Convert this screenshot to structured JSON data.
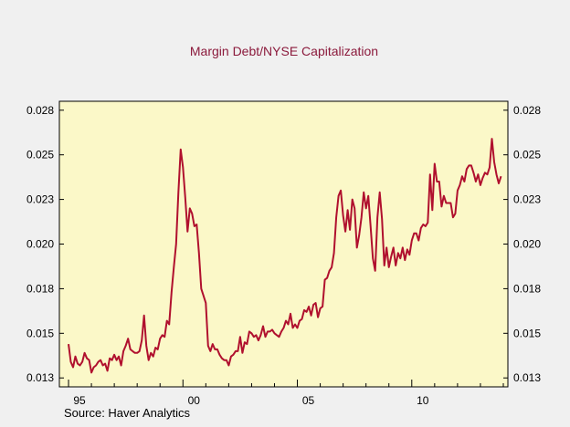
{
  "chart_data": {
    "type": "line",
    "title": "Margin Debt/NYSE Capitalization",
    "source": "Source: Haver Analytics",
    "xlabel": "",
    "ylabel": "",
    "xlim": [
      1994.6,
      2014.2
    ],
    "ylim": [
      0.0125,
      0.0285
    ],
    "y_ticks": [
      {
        "value": 0.013,
        "label": "0.013"
      },
      {
        "value": 0.0155,
        "label": "0.015"
      },
      {
        "value": 0.018,
        "label": "0.018"
      },
      {
        "value": 0.0205,
        "label": "0.020"
      },
      {
        "value": 0.023,
        "label": "0.023"
      },
      {
        "value": 0.0255,
        "label": "0.025"
      },
      {
        "value": 0.028,
        "label": "0.028"
      }
    ],
    "x_ticks": [
      {
        "value": 1995,
        "label": "95"
      },
      {
        "value": 2000,
        "label": "00"
      },
      {
        "value": 2005,
        "label": "05"
      },
      {
        "value": 2010,
        "label": "10"
      }
    ],
    "x_minor_ticks": [
      1996,
      1997,
      1998,
      1999,
      2001,
      2002,
      2003,
      2004,
      2006,
      2007,
      2008,
      2009,
      2011,
      2012,
      2013,
      2014
    ],
    "grid": false,
    "colors": {
      "line": "#b0102e",
      "plot_background": "#fbf8c8",
      "title": "#8b1a3c",
      "page_background": "#f0f0f0"
    },
    "series": [
      {
        "x": [
          1995.0,
          1995.1,
          1995.2,
          1995.3,
          1995.4,
          1995.5,
          1995.6,
          1995.7,
          1995.8,
          1995.9,
          1996.0,
          1996.1,
          1996.2,
          1996.3,
          1996.4,
          1996.5,
          1996.6,
          1996.7,
          1996.8,
          1996.9,
          1997.0,
          1997.1,
          1997.2,
          1997.3,
          1997.4,
          1997.5,
          1997.6,
          1997.7,
          1997.8,
          1997.9,
          1998.0,
          1998.1,
          1998.2,
          1998.3,
          1998.4,
          1998.5,
          1998.6,
          1998.7,
          1998.8,
          1998.9,
          1999.0,
          1999.1,
          1999.2,
          1999.3,
          1999.4,
          1999.5,
          1999.6,
          1999.7,
          1999.8,
          1999.9,
          2000.0,
          2000.1,
          2000.2,
          2000.3,
          2000.4,
          2000.5,
          2000.6,
          2000.7,
          2000.8,
          2000.9,
          2001.0,
          2001.1,
          2001.2,
          2001.3,
          2001.4,
          2001.5,
          2001.6,
          2001.7,
          2001.8,
          2001.9,
          2002.0,
          2002.1,
          2002.2,
          2002.3,
          2002.4,
          2002.5,
          2002.6,
          2002.7,
          2002.8,
          2002.9,
          2003.0,
          2003.1,
          2003.2,
          2003.3,
          2003.4,
          2003.5,
          2003.6,
          2003.7,
          2003.8,
          2003.9,
          2004.0,
          2004.1,
          2004.2,
          2004.3,
          2004.4,
          2004.5,
          2004.6,
          2004.7,
          2004.8,
          2004.9,
          2005.0,
          2005.1,
          2005.2,
          2005.3,
          2005.4,
          2005.5,
          2005.6,
          2005.7,
          2005.8,
          2005.9,
          2006.0,
          2006.1,
          2006.2,
          2006.3,
          2006.4,
          2006.5,
          2006.6,
          2006.7,
          2006.8,
          2006.9,
          2007.0,
          2007.1,
          2007.2,
          2007.3,
          2007.4,
          2007.5,
          2007.6,
          2007.7,
          2007.8,
          2007.9,
          2008.0,
          2008.1,
          2008.2,
          2008.3,
          2008.4,
          2008.5,
          2008.6,
          2008.7,
          2008.8,
          2008.9,
          2009.0,
          2009.1,
          2009.2,
          2009.3,
          2009.4,
          2009.5,
          2009.6,
          2009.7,
          2009.8,
          2009.9,
          2010.0,
          2010.1,
          2010.2,
          2010.3,
          2010.4,
          2010.5,
          2010.6,
          2010.7,
          2010.8,
          2010.9,
          2011.0,
          2011.1,
          2011.2,
          2011.3,
          2011.4,
          2011.5,
          2011.6,
          2011.7,
          2011.8,
          2011.9,
          2012.0,
          2012.1,
          2012.2,
          2012.3,
          2012.4,
          2012.5,
          2012.6,
          2012.7,
          2012.8,
          2012.9,
          2013.0,
          2013.1,
          2013.2,
          2013.3,
          2013.4,
          2013.5,
          2013.6,
          2013.7,
          2013.8,
          2013.9
        ],
        "y": [
          0.0149,
          0.0139,
          0.0136,
          0.0142,
          0.0138,
          0.0137,
          0.0139,
          0.0144,
          0.0141,
          0.014,
          0.0133,
          0.0136,
          0.0137,
          0.0139,
          0.014,
          0.0137,
          0.0138,
          0.0134,
          0.0141,
          0.014,
          0.0143,
          0.014,
          0.0142,
          0.0137,
          0.0145,
          0.0148,
          0.0152,
          0.0146,
          0.0145,
          0.0144,
          0.0144,
          0.0145,
          0.0151,
          0.0165,
          0.0148,
          0.014,
          0.0144,
          0.0142,
          0.0147,
          0.0146,
          0.0152,
          0.0154,
          0.0153,
          0.0162,
          0.016,
          0.0178,
          0.0192,
          0.0205,
          0.0234,
          0.0258,
          0.0248,
          0.0231,
          0.0212,
          0.0225,
          0.0222,
          0.0215,
          0.0216,
          0.02,
          0.018,
          0.0176,
          0.0172,
          0.0148,
          0.0145,
          0.0149,
          0.0146,
          0.0146,
          0.0143,
          0.0141,
          0.014,
          0.014,
          0.0137,
          0.0142,
          0.0143,
          0.0145,
          0.0145,
          0.0153,
          0.0144,
          0.015,
          0.0149,
          0.0156,
          0.0155,
          0.0153,
          0.0154,
          0.0151,
          0.0154,
          0.0159,
          0.0153,
          0.0156,
          0.0156,
          0.0157,
          0.0155,
          0.0154,
          0.0153,
          0.0156,
          0.0158,
          0.0162,
          0.016,
          0.0166,
          0.0158,
          0.016,
          0.0158,
          0.0162,
          0.0163,
          0.0168,
          0.0167,
          0.017,
          0.0165,
          0.0171,
          0.0172,
          0.0164,
          0.0169,
          0.017,
          0.0185,
          0.0186,
          0.019,
          0.0192,
          0.02,
          0.022,
          0.0232,
          0.0235,
          0.0221,
          0.0212,
          0.0224,
          0.0213,
          0.023,
          0.0225,
          0.0203,
          0.021,
          0.022,
          0.0234,
          0.0225,
          0.0232,
          0.0215,
          0.0197,
          0.019,
          0.022,
          0.0234,
          0.0219,
          0.0193,
          0.0203,
          0.0192,
          0.0198,
          0.0203,
          0.0193,
          0.02,
          0.0197,
          0.0203,
          0.0196,
          0.0202,
          0.0199,
          0.0207,
          0.0211,
          0.0211,
          0.0207,
          0.0214,
          0.0216,
          0.0215,
          0.0217,
          0.0244,
          0.0224,
          0.025,
          0.024,
          0.024,
          0.0226,
          0.0232,
          0.0228,
          0.0228,
          0.0228,
          0.022,
          0.0222,
          0.0235,
          0.0238,
          0.0243,
          0.024,
          0.0247,
          0.0249,
          0.0249,
          0.0245,
          0.024,
          0.0244,
          0.0238,
          0.0242,
          0.0245,
          0.0244,
          0.0248,
          0.0264,
          0.0251,
          0.0244,
          0.0239,
          0.0243
        ]
      }
    ]
  }
}
